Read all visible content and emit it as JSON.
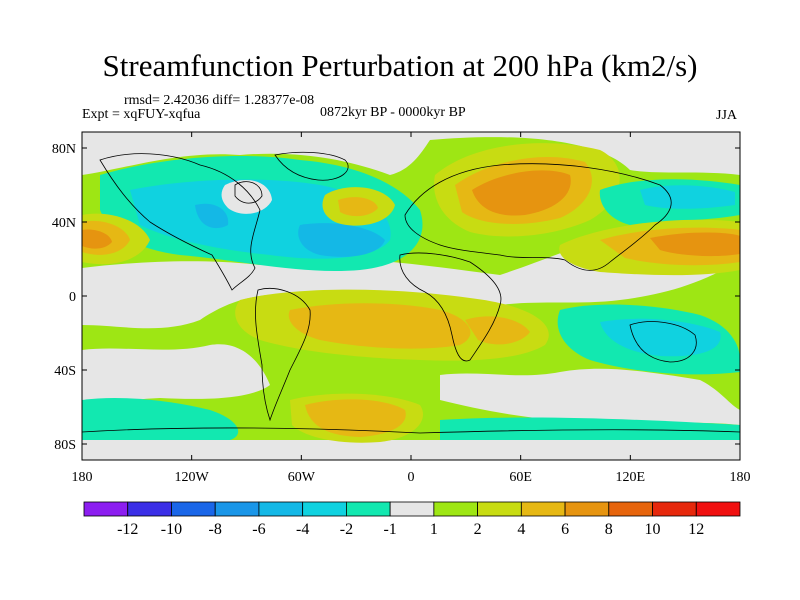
{
  "title": "Streamfunction Perturbation at 200 hPa (km2/s)",
  "stats": "rmsd= 2.42036 diff= 1.28377e-08",
  "experiment": "Expt = xqFUY-xqfua",
  "period": "0872kyr BP - 0000kyr BP",
  "season": "JJA",
  "lat_ticks": [
    "80N",
    "40N",
    "0",
    "40S",
    "80S"
  ],
  "lon_ticks": [
    "180",
    "120W",
    "60W",
    "0",
    "60E",
    "120E",
    "180"
  ],
  "colorbar": {
    "labels": [
      "-12",
      "-10",
      "-8",
      "-6",
      "-4",
      "-2",
      "-1",
      "1",
      "2",
      "4",
      "6",
      "8",
      "10",
      "12"
    ],
    "colors": [
      "#8c1ef0",
      "#3b2ee6",
      "#1a66e8",
      "#1a96e8",
      "#14b8e6",
      "#10d2e0",
      "#12e8b0",
      "#e6e6e6",
      "#9ee614",
      "#c8dc12",
      "#e6b814",
      "#e69410",
      "#e6640c",
      "#e6280c",
      "#f01010"
    ]
  },
  "colors": {
    "land_outline": "#000000",
    "neutral": "#e6e6e6"
  }
}
